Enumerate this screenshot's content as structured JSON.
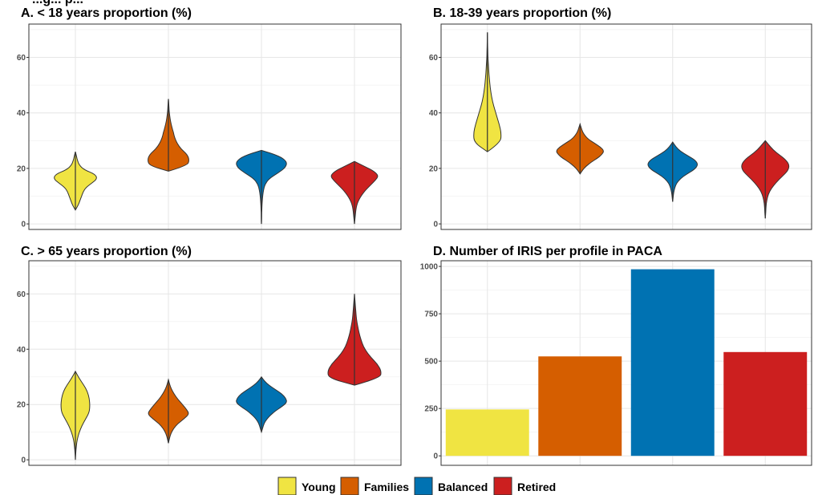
{
  "figure_title_fragment": "...g... p...",
  "legend": {
    "items": [
      {
        "label": "Young",
        "color": "#f0e442"
      },
      {
        "label": "Families",
        "color": "#d55e00"
      },
      {
        "label": "Balanced",
        "color": "#0072b2"
      },
      {
        "label": "Retired",
        "color": "#cc1f1f"
      }
    ]
  },
  "chart_data": [
    {
      "type": "violin",
      "title": "A. < 18 years proportion (%)",
      "categories": [
        "Young",
        "Families",
        "Balanced",
        "Retired"
      ],
      "ylim": [
        -2,
        72
      ],
      "yticks": [
        0,
        20,
        40,
        60
      ],
      "grid": true,
      "series": [
        {
          "name": "Young",
          "min": 5,
          "max": 26,
          "mode": 17
        },
        {
          "name": "Families",
          "min": 19,
          "max": 45,
          "mode": 23
        },
        {
          "name": "Balanced",
          "min": 0,
          "max": 26.5,
          "mode": 20
        },
        {
          "name": "Retired",
          "min": 0,
          "max": 22.5,
          "mode": 15.5
        }
      ]
    },
    {
      "type": "violin",
      "title": "B. 18-39 years proportion (%)",
      "categories": [
        "Young",
        "Families",
        "Balanced",
        "Retired"
      ],
      "ylim": [
        -2,
        72
      ],
      "yticks": [
        0,
        20,
        40,
        60
      ],
      "grid": true,
      "series": [
        {
          "name": "Young",
          "min": 26,
          "max": 69,
          "mode": 31
        },
        {
          "name": "Families",
          "min": 18,
          "max": 36,
          "mode": 27
        },
        {
          "name": "Balanced",
          "min": 8,
          "max": 29.5,
          "mode": 20.5
        },
        {
          "name": "Retired",
          "min": 2,
          "max": 30,
          "mode": 17
        }
      ]
    },
    {
      "type": "violin",
      "title": "C. > 65 years proportion (%)",
      "categories": [
        "Young",
        "Families",
        "Balanced",
        "Retired"
      ],
      "ylim": [
        -2,
        72
      ],
      "yticks": [
        0,
        20,
        40,
        60
      ],
      "grid": true,
      "series": [
        {
          "name": "Young",
          "min": 0,
          "max": 32,
          "mode": 20
        },
        {
          "name": "Families",
          "min": 6,
          "max": 29,
          "mode": 17
        },
        {
          "name": "Balanced",
          "min": 10,
          "max": 30,
          "mode": 23
        },
        {
          "name": "Retired",
          "min": 27,
          "max": 60,
          "mode": 30
        }
      ]
    },
    {
      "type": "bar",
      "title": "D. Number of IRIS per profile in PACA",
      "categories": [
        "Young",
        "Families",
        "Balanced",
        "Retired"
      ],
      "values": [
        245,
        525,
        985,
        548
      ],
      "ylim": [
        -50,
        1030
      ],
      "yticks": [
        0,
        250,
        500,
        750,
        1000
      ],
      "grid": true
    }
  ]
}
